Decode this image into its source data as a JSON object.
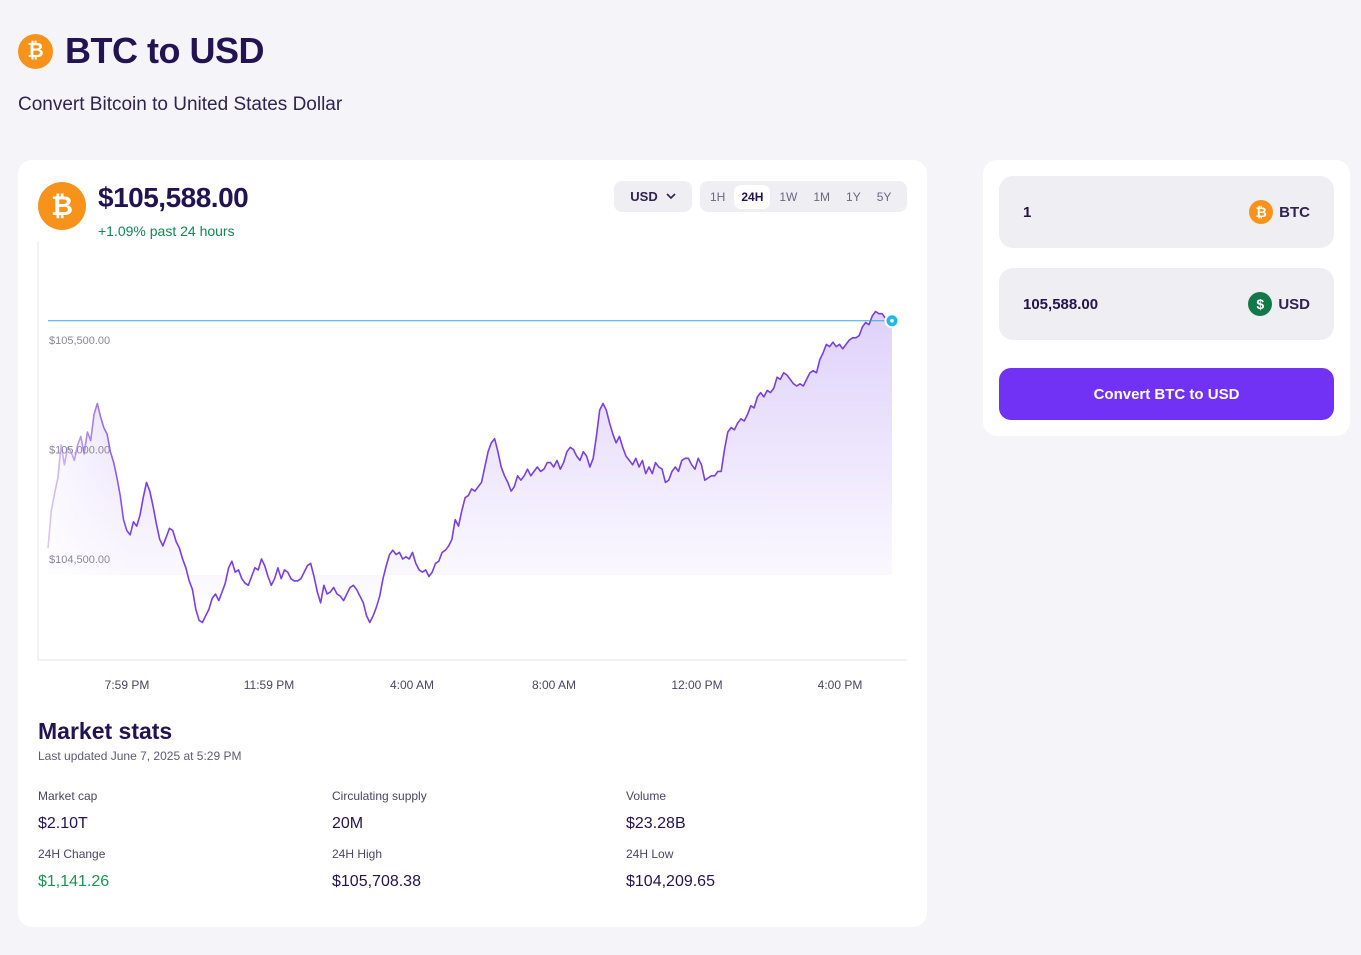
{
  "header": {
    "title": "BTC to USD",
    "subtitle": "Convert Bitcoin to United States Dollar",
    "coin_symbol": "₿"
  },
  "price_card": {
    "price": "$105,588.00",
    "change": "+1.09% past 24 hours",
    "currency": "USD",
    "ranges": [
      "1H",
      "24H",
      "1W",
      "1M",
      "1Y",
      "5Y"
    ],
    "active_range": "24H"
  },
  "chart_data": {
    "type": "area",
    "y_ticks": [
      "$105,500.00",
      "$105,000.00",
      "$104,500.00"
    ],
    "y_tick_values": [
      105500,
      105000,
      104500
    ],
    "x_ticks": [
      "7:59 PM",
      "11:59 PM",
      "4:00 AM",
      "8:00 AM",
      "12:00 PM",
      "4:00 PM"
    ],
    "current_value": 105588,
    "line_color": "#7a3ee6",
    "current_line_color": "#3aa8d8",
    "series": [
      {
        "values": [
          104550,
          104720,
          104800,
          104870,
          105020,
          104930,
          105010,
          104990,
          104950,
          105020,
          105060,
          104980,
          105080,
          105040,
          105160,
          105210,
          105150,
          105100,
          105070,
          104990,
          104940,
          104870,
          104790,
          104680,
          104630,
          104610,
          104670,
          104650,
          104700,
          104780,
          104850,
          104810,
          104740,
          104660,
          104590,
          104560,
          104600,
          104640,
          104630,
          104580,
          104550,
          104500,
          104460,
          104400,
          104360,
          104270,
          104220,
          104210,
          104240,
          104270,
          104320,
          104340,
          104310,
          104350,
          104390,
          104460,
          104490,
          104440,
          104450,
          104410,
          104390,
          104380,
          104420,
          104460,
          104450,
          104500,
          104470,
          104420,
          104380,
          104410,
          104460,
          104410,
          104450,
          104440,
          104410,
          104400,
          104400,
          104410,
          104440,
          104470,
          104480,
          104420,
          104350,
          104300,
          104380,
          104340,
          104350,
          104370,
          104340,
          104330,
          104310,
          104340,
          104370,
          104380,
          104360,
          104330,
          104300,
          104240,
          104210,
          104240,
          104280,
          104330,
          104410,
          104470,
          104520,
          104540,
          104520,
          104530,
          104500,
          104510,
          104500,
          104530,
          104480,
          104450,
          104440,
          104450,
          104420,
          104440,
          104480,
          104490,
          104530,
          104540,
          104560,
          104590,
          104680,
          104650,
          104720,
          104780,
          104790,
          104820,
          104810,
          104830,
          104850,
          104920,
          104990,
          105030,
          105050,
          104990,
          104920,
          104880,
          104850,
          104810,
          104830,
          104880,
          104860,
          104880,
          104910,
          104880,
          104900,
          104920,
          104900,
          104910,
          104940,
          104940,
          104920,
          104950,
          104910,
          104940,
          104990,
          105010,
          105000,
          104970,
          104950,
          104990,
          104970,
          104920,
          104960,
          105060,
          105180,
          105210,
          105180,
          105120,
          105070,
          105030,
          105060,
          105010,
          104970,
          104950,
          104930,
          104960,
          104920,
          104950,
          104890,
          104920,
          104890,
          104940,
          104920,
          104910,
          104850,
          104860,
          104900,
          104920,
          104900,
          104950,
          104960,
          104960,
          104930,
          104910,
          104960,
          104930,
          104860,
          104870,
          104880,
          104880,
          104900,
          104900,
          105000,
          105080,
          105100,
          105090,
          105120,
          105140,
          105130,
          105160,
          105200,
          105190,
          105240,
          105260,
          105240,
          105270,
          105260,
          105280,
          105330,
          105320,
          105350,
          105340,
          105320,
          105300,
          105290,
          105300,
          105290,
          105320,
          105350,
          105360,
          105350,
          105410,
          105440,
          105480,
          105470,
          105490,
          105470,
          105480,
          105460,
          105480,
          105500,
          105510,
          105510,
          105520,
          105560,
          105580,
          105570,
          105610,
          105630,
          105620,
          105620,
          105600,
          105590,
          105588
        ]
      }
    ]
  },
  "market": {
    "title": "Market stats",
    "updated": "Last updated June 7, 2025 at 5:29 PM",
    "stats": [
      {
        "label": "Market cap",
        "value": "$2.10T"
      },
      {
        "label": "Circulating supply",
        "value": "20M"
      },
      {
        "label": "Volume",
        "value": "$23.28B"
      },
      {
        "label": "24H Change",
        "value": "$1,141.26"
      },
      {
        "label": "24H High",
        "value": "$105,708.38"
      },
      {
        "label": "24H Low",
        "value": "$104,209.65"
      }
    ]
  },
  "converter": {
    "from_value": "1",
    "from_currency": "BTC",
    "to_value": "105,588.00",
    "to_currency": "USD",
    "usd_symbol": "$",
    "button_label": "Convert BTC to USD"
  }
}
